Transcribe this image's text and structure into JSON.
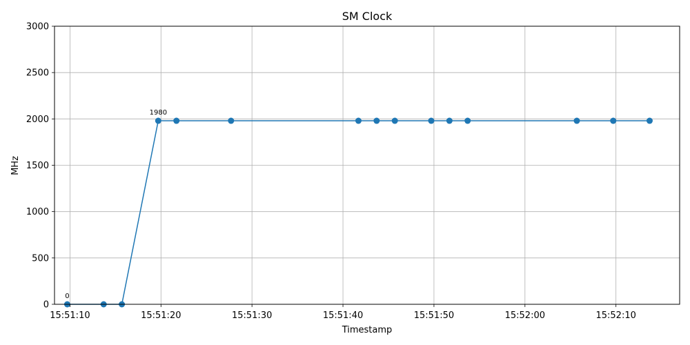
{
  "chart_data": {
    "type": "line",
    "title": "SM Clock",
    "xlabel": "Timestamp",
    "ylabel": "MHz",
    "ylim": [
      0,
      3000
    ],
    "yticks": [
      0,
      500,
      1000,
      1500,
      2000,
      2500,
      3000
    ],
    "xlim": [
      "15:51:08.3",
      "15:52:17.0"
    ],
    "xticks": [
      "15:51:10",
      "15:51:20",
      "15:51:30",
      "15:51:40",
      "15:51:50",
      "15:52:00",
      "15:52:10"
    ],
    "grid": true,
    "color": "#1f77b4",
    "series": [
      {
        "x": [
          "15:51:09.7",
          "15:51:13.7",
          "15:51:15.7",
          "15:51:19.7",
          "15:51:21.7",
          "15:51:27.7",
          "15:51:41.7",
          "15:51:43.7",
          "15:51:45.7",
          "15:51:49.7",
          "15:51:51.7",
          "15:51:53.7",
          "15:52:05.7",
          "15:52:09.7",
          "15:52:13.7"
        ],
        "values": [
          0,
          0,
          0,
          1980,
          1980,
          1980,
          1980,
          1980,
          1980,
          1980,
          1980,
          1980,
          1980,
          1980,
          1980
        ]
      }
    ],
    "annotations": [
      {
        "x": "15:51:09.7",
        "y": 0,
        "text": "0"
      },
      {
        "x": "15:51:19.7",
        "y": 1980,
        "text": "1980"
      }
    ]
  }
}
